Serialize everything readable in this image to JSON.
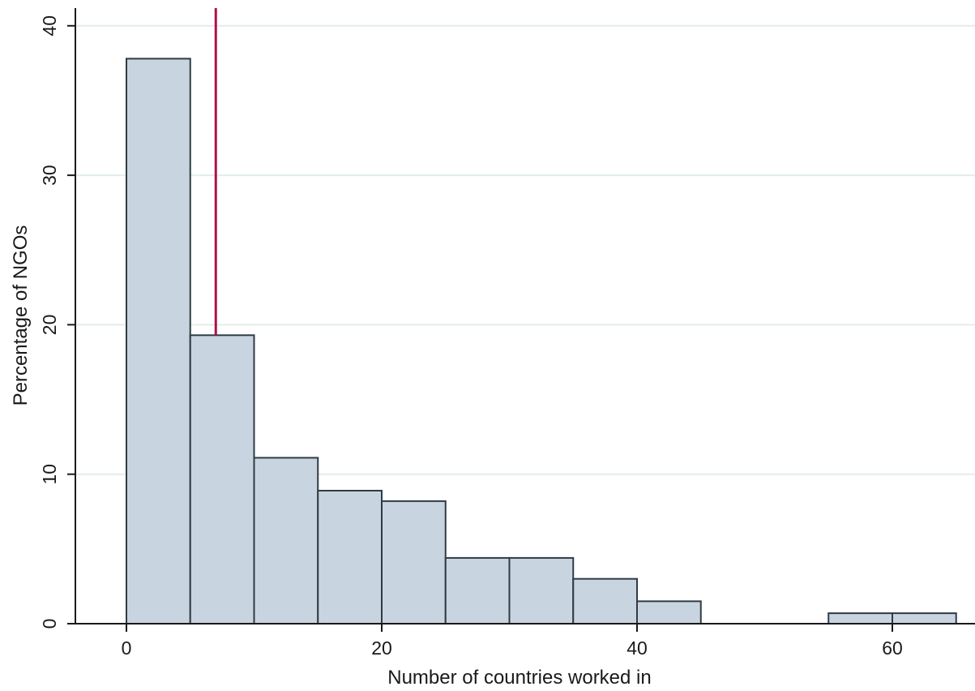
{
  "chart_data": {
    "type": "bar",
    "xlabel": "Number of countries worked in",
    "ylabel": "Percentage of NGOs",
    "xlim": [
      -5,
      66
    ],
    "ylim": [
      0,
      41
    ],
    "xticks": [
      0,
      20,
      40,
      60
    ],
    "yticks": [
      0,
      10,
      20,
      30,
      40
    ],
    "grid": true,
    "bins": [
      {
        "x0": 0,
        "x1": 5,
        "value": 37.8
      },
      {
        "x0": 5,
        "x1": 10,
        "value": 19.3
      },
      {
        "x0": 10,
        "x1": 15,
        "value": 11.1
      },
      {
        "x0": 15,
        "x1": 20,
        "value": 8.9
      },
      {
        "x0": 20,
        "x1": 25,
        "value": 8.2
      },
      {
        "x0": 25,
        "x1": 30,
        "value": 4.4
      },
      {
        "x0": 30,
        "x1": 35,
        "value": 4.4
      },
      {
        "x0": 35,
        "x1": 40,
        "value": 3.0
      },
      {
        "x0": 40,
        "x1": 45,
        "value": 1.5
      },
      {
        "x0": 55,
        "x1": 60,
        "value": 0.7
      },
      {
        "x0": 60,
        "x1": 65,
        "value": 0.7
      }
    ],
    "reference_line": {
      "x": 7
    },
    "colors": {
      "bar_fill": "#c8d4df",
      "bar_stroke": "#2f3b45",
      "reference_line": "#b0104c",
      "grid": "#e3ecef"
    }
  }
}
